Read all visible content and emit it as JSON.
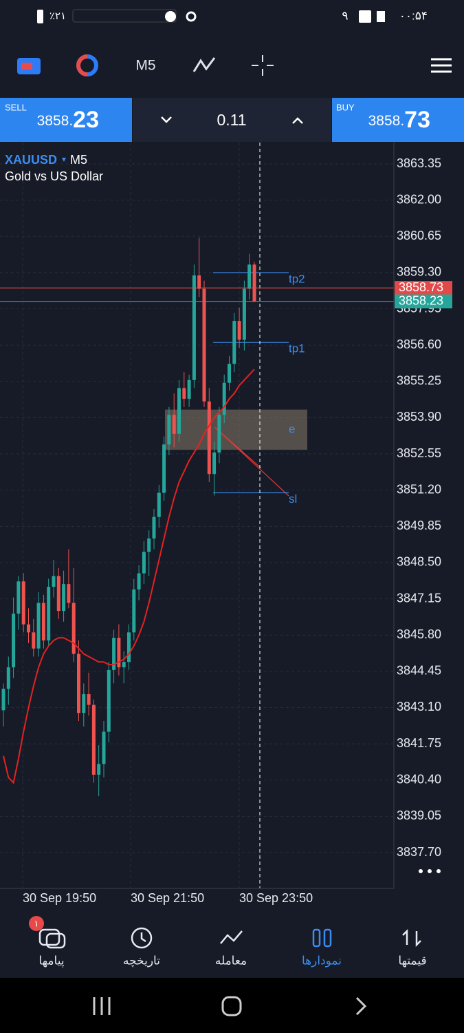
{
  "status_bar": {
    "time": "۰۰:۵۴",
    "notif": "۹",
    "battery": "٪۲۱"
  },
  "toolbar": {
    "timeframe": "M5"
  },
  "trade_bar": {
    "sell_label": "SELL",
    "sell_int": "3858.",
    "sell_frac": "23",
    "volume": "0.11",
    "buy_label": "BUY",
    "buy_int": "3858.",
    "buy_frac": "73"
  },
  "chart": {
    "symbol": "XAUUSD",
    "timeframe": "M5",
    "description": "Gold vs US Dollar",
    "yticks": [
      3863.35,
      {
        "value": 3862,
        "label": "3862.00"
      },
      3860.65,
      {
        "value": 3859.3,
        "label": "3859.30"
      },
      3857.95,
      {
        "value": 3856.6,
        "label": "3856.60"
      },
      3855.25,
      {
        "value": 3853.9,
        "label": "3853.90"
      },
      3852.55,
      {
        "value": 3851.2,
        "label": "3851.20"
      },
      3849.85,
      {
        "value": 3848.5,
        "label": "3848.50"
      },
      3847.15,
      {
        "value": 3845.8,
        "label": "3845.80"
      },
      3844.45,
      {
        "value": 3843.1,
        "label": "3843.10"
      },
      3841.75,
      {
        "value": 3840.4,
        "label": "3840.40"
      },
      3839.05,
      {
        "value": 3837.7,
        "label": "3837.70"
      }
    ],
    "xtick_labels": [
      "30 Sep 19:50",
      "30 Sep 21:50",
      "30 Sep 23:50"
    ],
    "candles": {
      "open": [
        3843.0,
        3843.8,
        3844.6,
        3846.6,
        3847.8,
        3846.2,
        3845.9,
        3845.3,
        3847.0,
        3845.6,
        3847.6,
        3848.0,
        3846.7,
        3847.7,
        3847.0,
        3845.1,
        3842.9,
        3843.6,
        3843.2,
        3840.6,
        3841.0,
        3842.2,
        3844.5,
        3845.7,
        3844.6,
        3844.8,
        3845.9,
        3847.5,
        3848.1,
        3848.9,
        3849.4,
        3850.2,
        3851.1,
        3852.9,
        3854.0,
        3853.3,
        3855.0,
        3854.6,
        3855.3,
        3859.2,
        3858.7,
        3854.5,
        3851.8,
        3852.6,
        3854.0,
        3855.2,
        3855.9,
        3857.5,
        3856.8,
        3858.7,
        3859.6
      ],
      "high": [
        3844.0,
        3845.0,
        3847.2,
        3848.0,
        3848.1,
        3846.8,
        3846.4,
        3847.4,
        3847.3,
        3847.9,
        3848.6,
        3848.3,
        3848.2,
        3849.0,
        3848.3,
        3845.6,
        3844.0,
        3844.4,
        3843.4,
        3841.7,
        3842.6,
        3844.8,
        3846.0,
        3846.2,
        3845.2,
        3846.2,
        3847.9,
        3848.4,
        3849.3,
        3849.7,
        3850.5,
        3851.4,
        3853.2,
        3854.3,
        3854.8,
        3855.3,
        3855.6,
        3855.5,
        3859.6,
        3860.6,
        3859.0,
        3855.0,
        3853.0,
        3854.3,
        3855.5,
        3856.2,
        3857.8,
        3858.0,
        3859.0,
        3860.0,
        3859.7
      ],
      "low": [
        3842.4,
        3843.2,
        3844.2,
        3846.0,
        3845.9,
        3845.5,
        3845.0,
        3845.0,
        3845.3,
        3845.4,
        3847.2,
        3846.4,
        3846.3,
        3846.8,
        3844.8,
        3842.6,
        3842.4,
        3842.8,
        3840.3,
        3839.8,
        3840.5,
        3841.8,
        3844.0,
        3844.3,
        3844.0,
        3844.5,
        3845.6,
        3847.1,
        3847.7,
        3848.0,
        3849.0,
        3849.8,
        3850.8,
        3852.5,
        3852.8,
        3853.0,
        3854.3,
        3854.3,
        3855.0,
        3858.4,
        3854.3,
        3851.5,
        3851.0,
        3852.2,
        3853.7,
        3854.9,
        3855.6,
        3856.5,
        3856.4,
        3858.3,
        3858.2
      ],
      "close": [
        3843.8,
        3844.6,
        3846.6,
        3847.8,
        3846.2,
        3845.9,
        3845.3,
        3847.0,
        3845.6,
        3847.6,
        3848.0,
        3846.7,
        3847.7,
        3847.0,
        3845.1,
        3842.9,
        3843.6,
        3843.2,
        3840.6,
        3841.0,
        3842.2,
        3844.5,
        3845.7,
        3844.6,
        3844.8,
        3845.9,
        3847.5,
        3848.1,
        3848.9,
        3849.4,
        3850.2,
        3851.1,
        3852.9,
        3854.0,
        3853.3,
        3855.0,
        3854.6,
        3855.3,
        3859.2,
        3858.7,
        3854.5,
        3851.8,
        3852.6,
        3854.0,
        3855.2,
        3855.9,
        3857.5,
        3856.8,
        3858.7,
        3859.6,
        3858.23
      ]
    },
    "moving_average": [
      3841.3,
      3840.5,
      3840.3,
      3841.2,
      3842.2,
      3843.1,
      3843.9,
      3844.6,
      3845.1,
      3845.4,
      3845.6,
      3845.7,
      3845.7,
      3845.6,
      3845.5,
      3845.3,
      3845.1,
      3845.0,
      3844.9,
      3844.8,
      3844.8,
      3844.7,
      3844.7,
      3844.8,
      3844.9,
      3845.1,
      3845.4,
      3845.8,
      3846.3,
      3847.0,
      3847.8,
      3848.6,
      3849.4,
      3850.2,
      3850.9,
      3851.5,
      3851.9,
      3852.3,
      3852.6,
      3852.9,
      3853.3,
      3853.6,
      3853.9,
      3854.1,
      3854.3,
      3854.6,
      3854.8,
      3855.1,
      3855.3,
      3855.5,
      3855.7
    ],
    "ask": 3858.73,
    "bid": 3858.23,
    "levels": [
      {
        "label": "tp2",
        "price": 3859.3
      },
      {
        "label": "tp1",
        "price": 3856.7
      },
      {
        "label": "sl",
        "price": 3851.1
      }
    ],
    "zone": {
      "label": "e",
      "top": 3854.2,
      "bottom": 3852.7
    }
  },
  "bottom_nav": {
    "badge": "۱",
    "items": [
      "پیامها",
      "تاریخچه",
      "معامله",
      "نمودارها",
      "قیمتها"
    ]
  }
}
